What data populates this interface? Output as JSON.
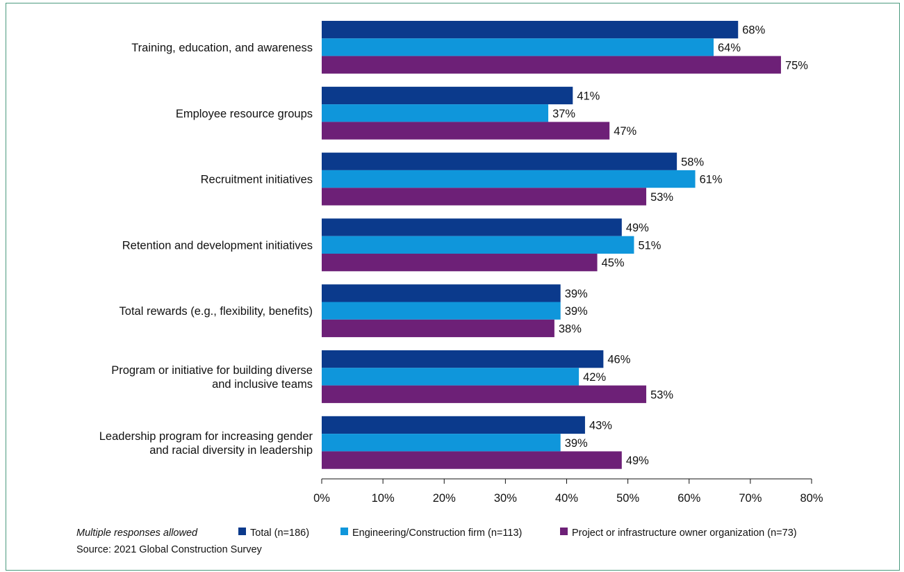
{
  "chart_data": {
    "type": "bar",
    "orientation": "horizontal",
    "categories": [
      [
        "Training, education, and awareness"
      ],
      [
        "Employee resource groups"
      ],
      [
        "Recruitment initiatives"
      ],
      [
        "Retention and development initiatives"
      ],
      [
        "Total rewards (e.g., flexibility, benefits)"
      ],
      [
        "Program or initiative for building diverse",
        "and inclusive teams"
      ],
      [
        "Leadership program for increasing gender",
        "and racial diversity in leadership"
      ]
    ],
    "series": [
      {
        "name": "Total (n=186)",
        "color": "#0b3a8c",
        "values": [
          68,
          41,
          58,
          49,
          39,
          46,
          43
        ]
      },
      {
        "name": "Engineering/Construction firm (n=113)",
        "color": "#0f96db",
        "values": [
          64,
          37,
          61,
          51,
          39,
          42,
          39
        ]
      },
      {
        "name": "Project or infrastructure owner organization (n=73)",
        "color": "#6d2077",
        "values": [
          75,
          47,
          53,
          45,
          38,
          53,
          49
        ]
      }
    ],
    "xlim": [
      0,
      80
    ],
    "xticks": [
      0,
      10,
      20,
      30,
      40,
      50,
      60,
      70,
      80
    ],
    "tick_suffix": "%",
    "value_suffix": "%",
    "grid": false,
    "legend_position": "bottom",
    "note": "Multiple responses allowed",
    "source": "Source: 2021 Global Construction Survey"
  }
}
